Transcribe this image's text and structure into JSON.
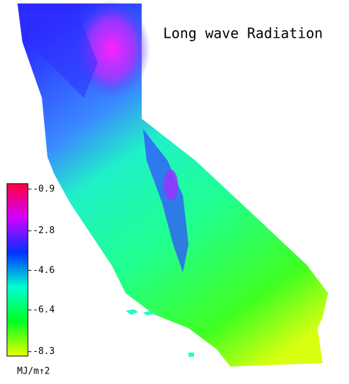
{
  "chart_data": {
    "type": "colormap",
    "title": "Long wave Radiation",
    "colorbar_label": "MJ/m↑2",
    "clim": [
      -8.5,
      -0.65
    ],
    "ticks": [
      -0.9,
      -2.8,
      -4.6,
      -6.4,
      -8.3
    ],
    "colormap": [
      "#e8ff00",
      "#00ff20",
      "#00ffd0",
      "#0030ff",
      "#d000ff",
      "#ff0040"
    ]
  }
}
